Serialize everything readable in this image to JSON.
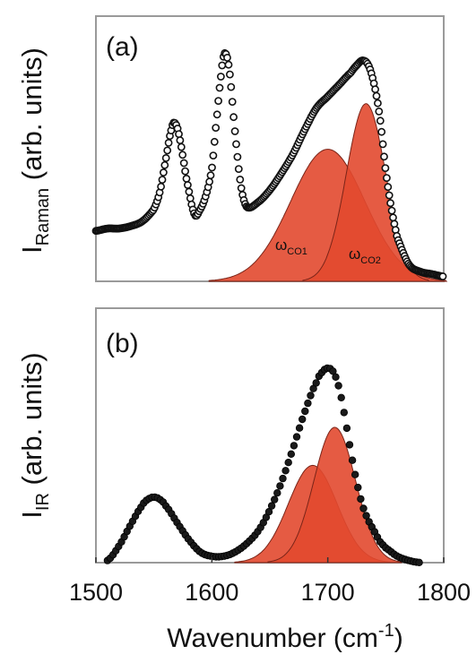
{
  "chart_data": [
    {
      "panel": "(a)",
      "type": "line",
      "ylabel_main": "I",
      "ylabel_sub": "Raman",
      "ylabel_rest": " (arb. units)",
      "xlim": [
        1500,
        1800
      ],
      "ylim": [
        0,
        1.0
      ],
      "series": [
        {
          "style": "open-circles",
          "x": [
            1500,
            1510,
            1520,
            1530,
            1540,
            1550,
            1555,
            1560,
            1565,
            1568,
            1572,
            1578,
            1585,
            1590,
            1595,
            1600,
            1604,
            1608,
            1611,
            1615,
            1620,
            1625,
            1630,
            1640,
            1650,
            1660,
            1670,
            1680,
            1690,
            1700,
            1710,
            1720,
            1725,
            1730,
            1735,
            1740,
            1745,
            1750,
            1755,
            1760,
            1770,
            1780,
            1790,
            1800
          ],
          "y": [
            0.21,
            0.22,
            0.22,
            0.23,
            0.25,
            0.3,
            0.37,
            0.5,
            0.63,
            0.66,
            0.6,
            0.43,
            0.28,
            0.3,
            0.36,
            0.47,
            0.67,
            0.86,
            0.95,
            0.88,
            0.62,
            0.4,
            0.31,
            0.33,
            0.38,
            0.45,
            0.53,
            0.63,
            0.72,
            0.77,
            0.82,
            0.87,
            0.9,
            0.92,
            0.9,
            0.82,
            0.68,
            0.46,
            0.3,
            0.18,
            0.07,
            0.04,
            0.03,
            0.02
          ]
        }
      ],
      "peaks": [
        {
          "label_main": "ω",
          "label_sub": "CO1",
          "center": 1700,
          "amplitude": 0.55,
          "width": 32
        },
        {
          "label_main": "ω",
          "label_sub": "CO2",
          "center": 1733,
          "amplitude": 0.74,
          "width": 17
        }
      ],
      "fill_color": "#e2492f"
    },
    {
      "panel": "(b)",
      "type": "line",
      "ylabel_main": "I",
      "ylabel_sub": "IR",
      "ylabel_rest": " (arb. units)",
      "xlim": [
        1500,
        1800
      ],
      "ylim": [
        0,
        1.0
      ],
      "series": [
        {
          "style": "filled-circles",
          "x": [
            1510,
            1520,
            1530,
            1540,
            1545,
            1550,
            1555,
            1560,
            1570,
            1580,
            1590,
            1600,
            1610,
            1620,
            1630,
            1640,
            1650,
            1660,
            1670,
            1680,
            1690,
            1695,
            1700,
            1705,
            1710,
            1715,
            1720,
            1725,
            1730,
            1735,
            1740,
            1745,
            1750,
            1760,
            1770,
            1780
          ],
          "y": [
            0.01,
            0.08,
            0.18,
            0.27,
            0.3,
            0.31,
            0.3,
            0.27,
            0.19,
            0.11,
            0.05,
            0.03,
            0.03,
            0.05,
            0.09,
            0.15,
            0.25,
            0.38,
            0.54,
            0.71,
            0.85,
            0.9,
            0.92,
            0.9,
            0.82,
            0.68,
            0.52,
            0.38,
            0.27,
            0.2,
            0.15,
            0.1,
            0.07,
            0.03,
            0.01,
            0.0
          ]
        }
      ],
      "peaks": [
        {
          "center": 1687,
          "amplitude": 0.46,
          "width": 21
        },
        {
          "center": 1706,
          "amplitude": 0.64,
          "width": 18
        }
      ],
      "fill_color": "#e2492f"
    }
  ],
  "xaxis": {
    "ticks": [
      "1500",
      "1600",
      "1700",
      "1800"
    ],
    "tick_values": [
      1500,
      1600,
      1700,
      1800
    ],
    "label_main": "Wavenumber (cm",
    "label_sup": "-1",
    "label_end": ")"
  }
}
